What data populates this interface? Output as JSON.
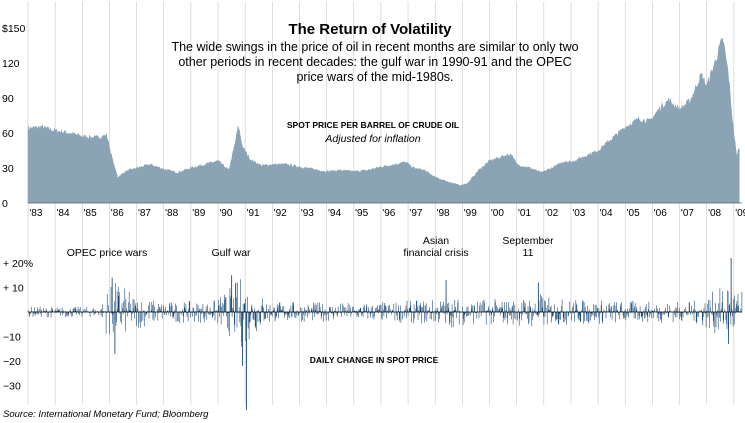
{
  "title": "The Return of Volatility",
  "subtitle": "The wide swings in the price of oil in recent months are similar to only two other periods in recent decades: the gulf war in 1990-91 and the OPEC price wars of the mid-1980s.",
  "source": "Source: International Monetary Fund; Bloomberg",
  "colors": {
    "area": "#8aa3b5",
    "spike": "#1f4e79",
    "grid": "#c8c8c8",
    "zero_line": "#000000"
  },
  "chart_data": [
    {
      "type": "area",
      "title": "SPOT PRICE PER BARREL OF CRUDE OIL",
      "subtitle": "Adjusted for inflation",
      "x_tick_labels": [
        "'83",
        "'84",
        "'85",
        "'86",
        "'87",
        "'88",
        "'89",
        "'90",
        "'91",
        "'92",
        "'93",
        "'94",
        "'95",
        "'96",
        "'97",
        "'98",
        "'99",
        "'00",
        "'01",
        "'02",
        "'03",
        "'04",
        "'05",
        "'06",
        "'07",
        "'08",
        "'09"
      ],
      "y_tick_labels": [
        "$150",
        "120",
        "90",
        "60",
        "30",
        "0"
      ],
      "y_ticks": [
        150,
        120,
        90,
        60,
        30,
        0
      ],
      "xlim": [
        1983,
        2009.3
      ],
      "ylim": [
        0,
        150
      ],
      "grid": "vertical",
      "x": [
        1983,
        1983.5,
        1984,
        1984.5,
        1985,
        1985.5,
        1985.9,
        1986.1,
        1986.3,
        1986.6,
        1987,
        1987.5,
        1988,
        1988.5,
        1989,
        1989.5,
        1990.0,
        1990.4,
        1990.6,
        1990.75,
        1990.9,
        1991.2,
        1991.6,
        1992,
        1992.5,
        1993,
        1993.5,
        1994,
        1994.5,
        1995,
        1995.5,
        1996,
        1996.5,
        1996.9,
        1997.2,
        1997.6,
        1998,
        1998.5,
        1998.9,
        1999.2,
        1999.6,
        2000,
        2000.5,
        2000.8,
        2001,
        2001.5,
        2001.9,
        2002.3,
        2002.8,
        2003,
        2003.5,
        2004,
        2004.5,
        2005,
        2005.5,
        2005.9,
        2006.3,
        2006.6,
        2007,
        2007.4,
        2007.8,
        2008.0,
        2008.3,
        2008.5,
        2008.6,
        2008.8,
        2008.95,
        2009.1,
        2009.2
      ],
      "values": [
        64,
        65,
        62,
        60,
        57,
        56,
        58,
        38,
        22,
        27,
        30,
        33,
        29,
        26,
        30,
        33,
        36,
        28,
        48,
        66,
        48,
        37,
        32,
        33,
        33,
        31,
        29,
        27,
        28,
        27,
        28,
        31,
        33,
        35,
        30,
        28,
        22,
        18,
        15,
        17,
        28,
        36,
        40,
        42,
        33,
        30,
        26,
        30,
        36,
        35,
        40,
        45,
        55,
        65,
        72,
        70,
        82,
        88,
        80,
        88,
        110,
        100,
        120,
        135,
        140,
        110,
        70,
        40,
        48
      ]
    },
    {
      "type": "bar",
      "title": "DAILY CHANGE IN SPOT PRICE",
      "y_tick_labels": [
        "+ 20%",
        "+ 10",
        "−10",
        "−20",
        "−30"
      ],
      "y_ticks": [
        20,
        10,
        -10,
        -20,
        -30
      ],
      "xlim": [
        1983,
        2009.3
      ],
      "ylim": [
        -40,
        25
      ],
      "annotations": [
        {
          "label": "OPEC price wars",
          "x": 1986.0
        },
        {
          "label": "Gulf war",
          "x": 1990.7
        },
        {
          "label": "Asian\nfinancial crisis",
          "x": 1998.0
        },
        {
          "label": "September\n11",
          "x": 2001.7
        }
      ],
      "volatility_profile": {
        "x": [
          1983,
          1985.7,
          1985.9,
          1986.3,
          1986.8,
          1987.5,
          1988,
          1989.8,
          1990.5,
          1990.9,
          1991.4,
          1992,
          1995,
          1996.8,
          1998,
          1998.5,
          1999,
          2000.5,
          2001,
          2001.9,
          2002.3,
          2003,
          2006,
          2007.5,
          2008.5,
          2008.8,
          2009.2
        ],
        "amplitude": [
          2,
          2,
          9,
          12,
          7,
          5,
          4,
          4,
          10,
          14,
          8,
          4,
          3.5,
          4,
          5,
          6,
          5,
          5,
          5,
          7,
          5,
          5,
          4,
          4,
          9,
          13,
          8
        ]
      },
      "extremes": [
        {
          "x": 1986.1,
          "value": 14
        },
        {
          "x": 1986.2,
          "value": -17
        },
        {
          "x": 1990.5,
          "value": 15
        },
        {
          "x": 1990.9,
          "value": -22
        },
        {
          "x": 1991.05,
          "value": -40
        },
        {
          "x": 1998.4,
          "value": 13
        },
        {
          "x": 2001.8,
          "value": 12
        },
        {
          "x": 2008.9,
          "value": 22
        },
        {
          "x": 2008.8,
          "value": -13
        }
      ]
    }
  ]
}
